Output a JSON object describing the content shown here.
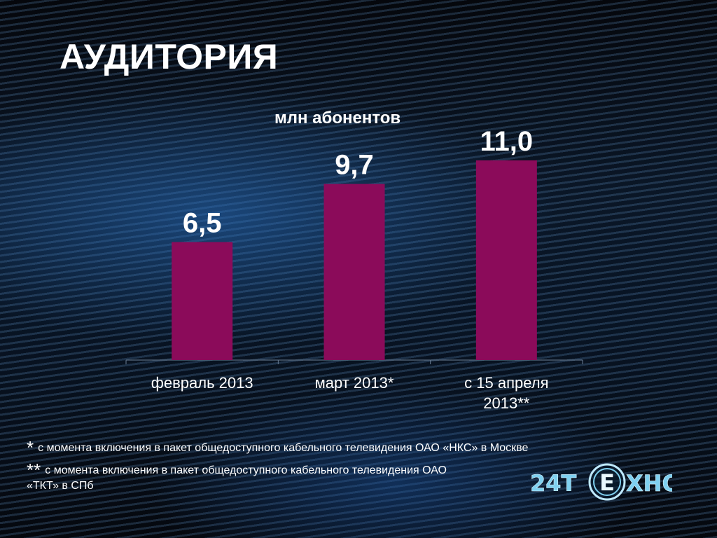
{
  "slide": {
    "title": "АУДИТОРИЯ",
    "unit_label": "млн абонентов"
  },
  "chart_data": {
    "type": "bar",
    "categories": [
      "февраль 2013",
      "март 2013*",
      "с 15 апреля 2013**"
    ],
    "category_lines": [
      [
        "февраль 2013"
      ],
      [
        "март 2013*"
      ],
      [
        "с 15 апреля",
        "2013**"
      ]
    ],
    "values": [
      6.5,
      9.7,
      11.0
    ],
    "value_labels": [
      "6,5",
      "9,7",
      "11,0"
    ],
    "ylabel": "млн абонентов",
    "ylim": [
      0,
      12.5
    ],
    "grid": false,
    "legend": "none",
    "bar_color": "#8b0b5a"
  },
  "footnotes": [
    {
      "mark": "*",
      "text": "с момента включения в пакет общедоступного кабельного телевидения ОАО «НКС» в Москве"
    },
    {
      "mark": "**",
      "text": "с момента включения в пакет общедоступного кабельного телевидения ОАО «ТКТ» в СПб"
    }
  ],
  "logo": {
    "text_left": "24Т",
    "text_mid": "Е",
    "text_right": "ХНО",
    "color": "#7fd0f0"
  }
}
